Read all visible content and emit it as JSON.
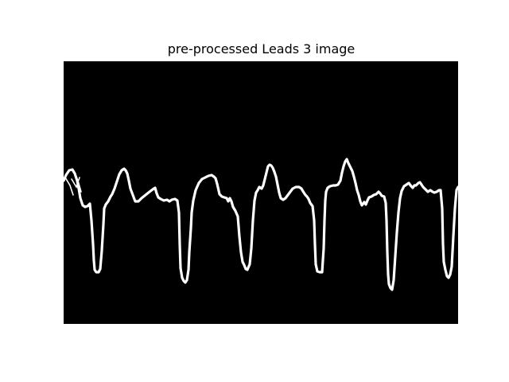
{
  "figure": {
    "title": "pre-processed Leads 3 image"
  },
  "image": {
    "content": "binary ECG lead trace",
    "background_color": "#000000",
    "trace_color": "#ffffff"
  }
}
